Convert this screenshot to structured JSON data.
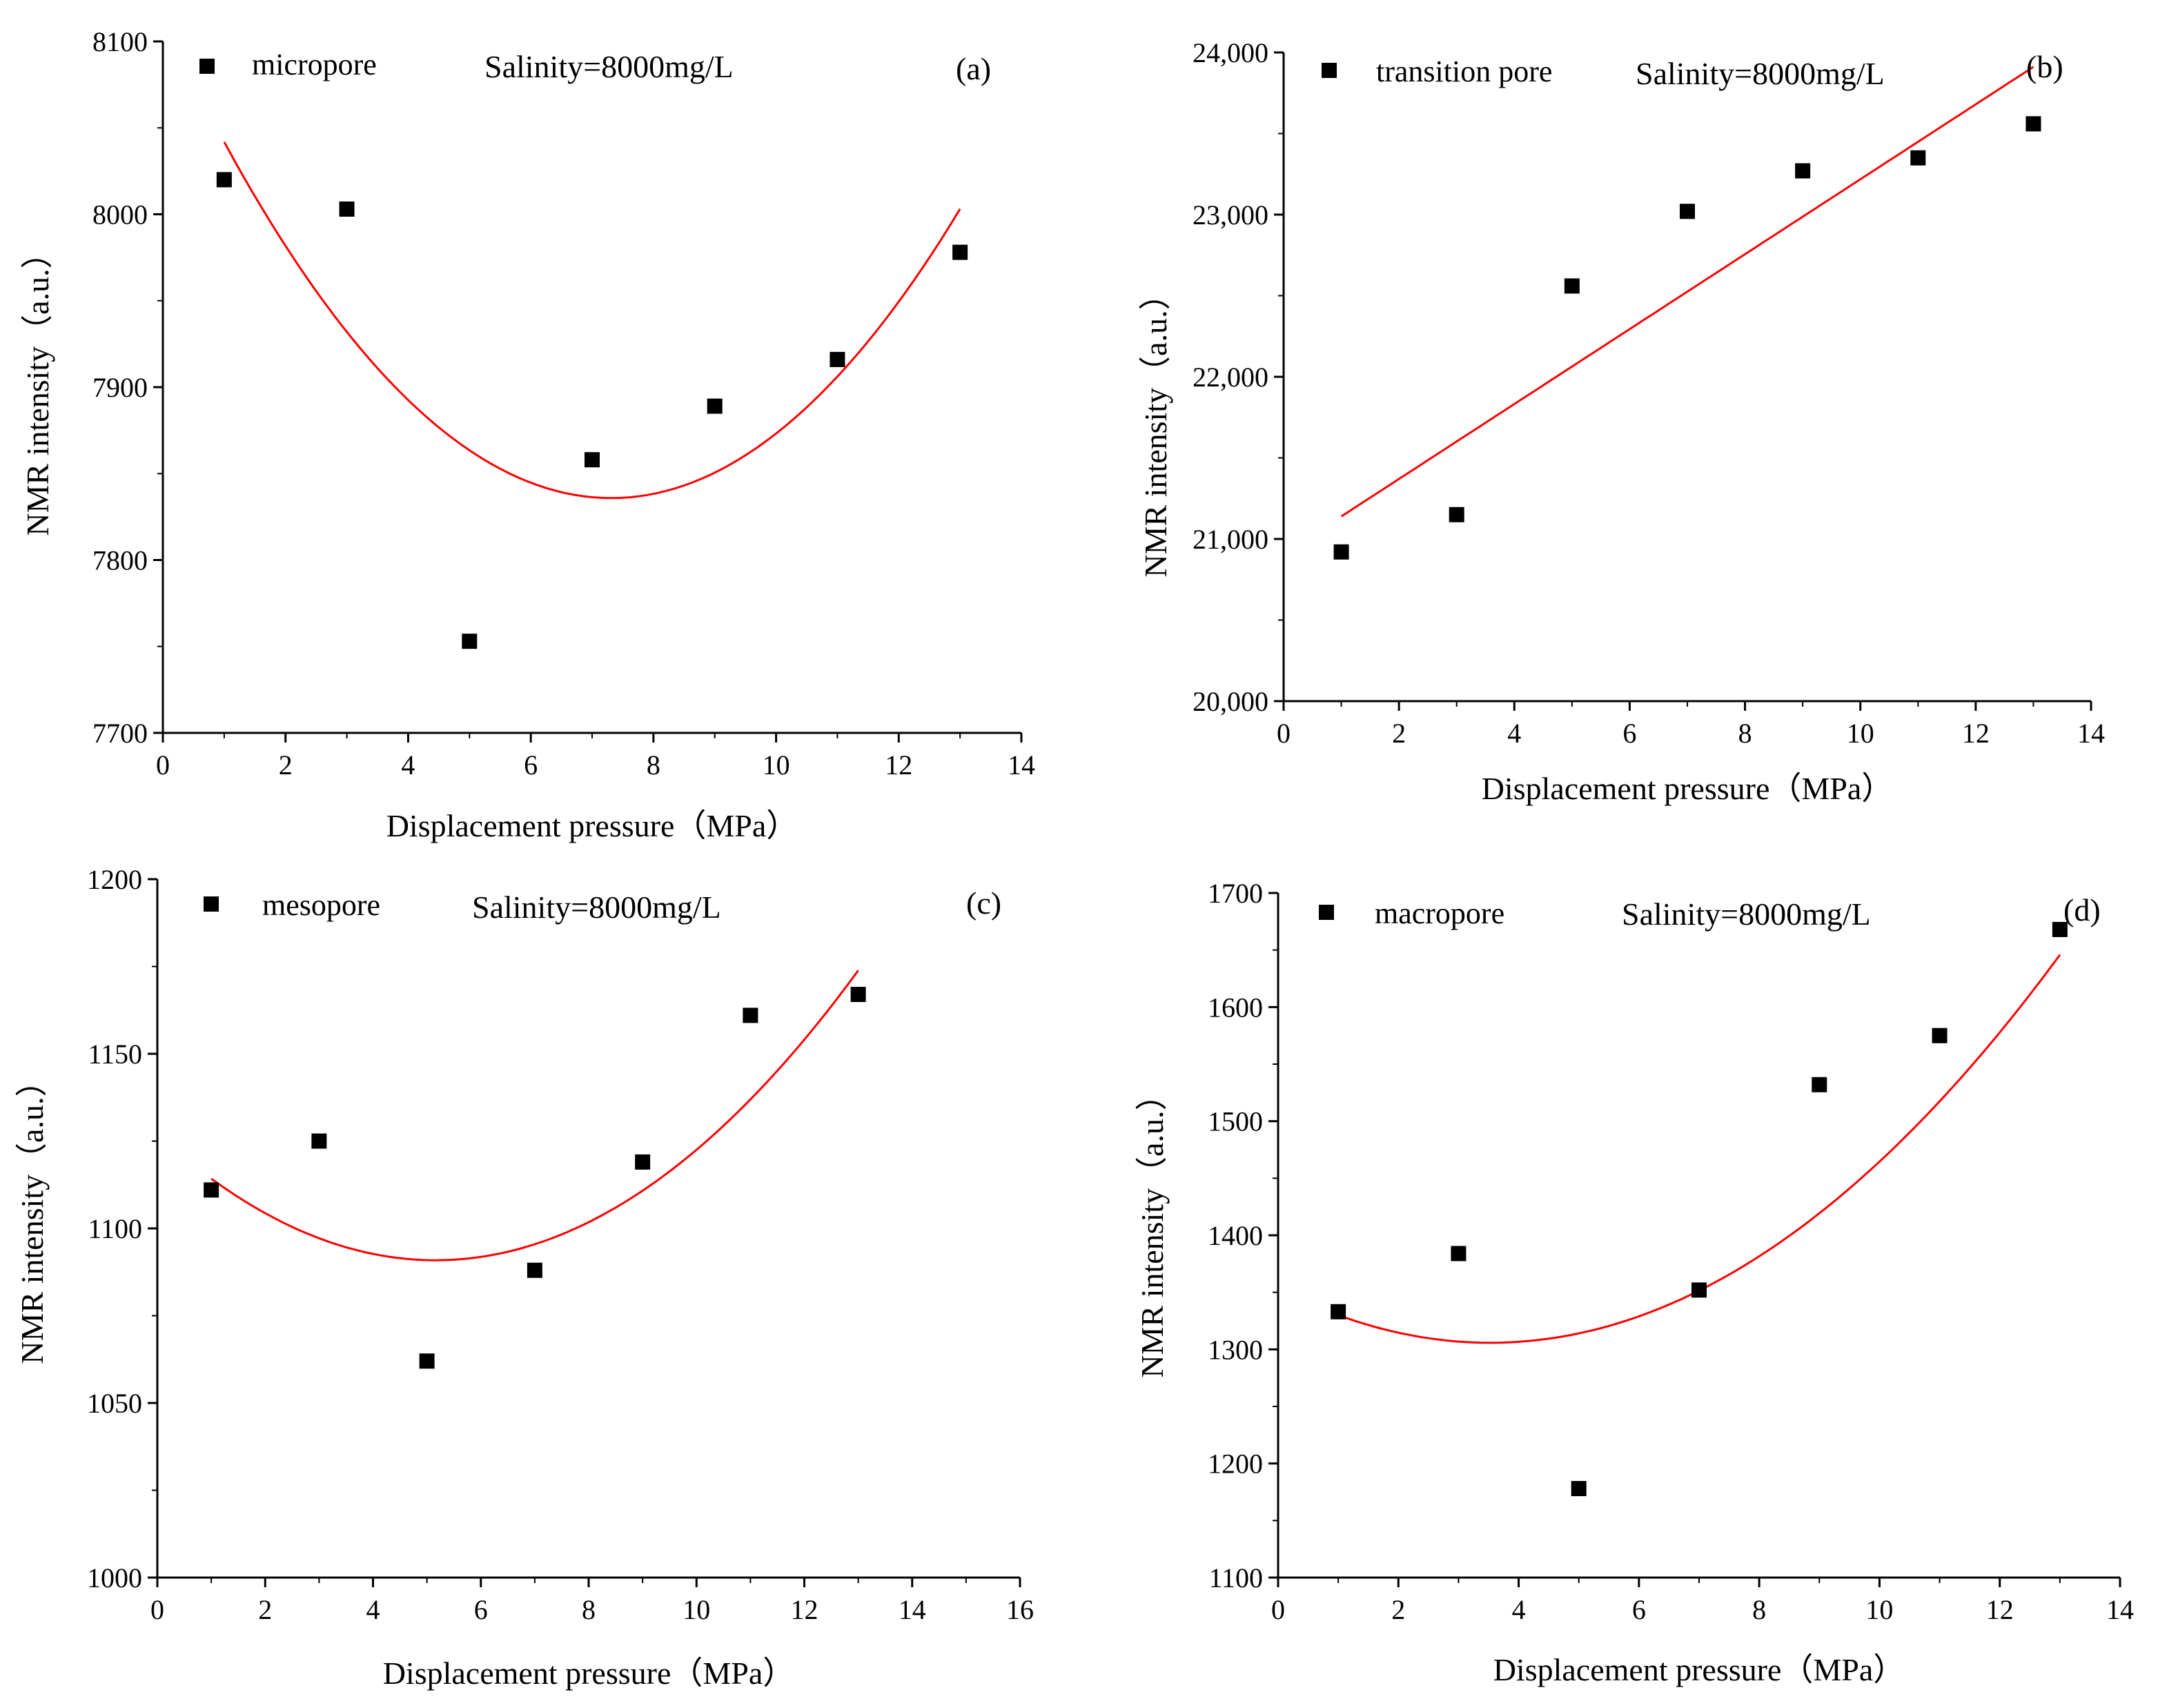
{
  "colors": {
    "marker": "#000000",
    "fit": "#ff0000",
    "axis": "#000000"
  },
  "chart_data": [
    {
      "id": "a",
      "type": "scatter",
      "panel_label": "(a)",
      "legend": "micropore",
      "annotation": "Salinity=8000mg/L",
      "xlabel": "Displacement pressure（MPa）",
      "ylabel": "NMR intensity（a.u.）",
      "xlim": [
        0,
        14
      ],
      "ylim": [
        7700,
        8100
      ],
      "xticks": [
        0,
        2,
        4,
        6,
        8,
        10,
        12,
        14
      ],
      "yticks": [
        7700,
        7800,
        7900,
        8000,
        8100
      ],
      "xtick_labels": [
        "0",
        "2",
        "4",
        "6",
        "8",
        "10",
        "12",
        "14"
      ],
      "ytick_labels": [
        "7700",
        "7800",
        "7900",
        "8000",
        "8100"
      ],
      "x": [
        1,
        3,
        5,
        7,
        9,
        11,
        13
      ],
      "y": [
        8020,
        8003,
        7753,
        7858,
        7889,
        7916,
        7978
      ],
      "fit": {
        "type": "quadratic",
        "coef": [
          8112.26,
          -75.61,
          5.17
        ],
        "x_range": [
          1,
          13
        ]
      }
    },
    {
      "id": "b",
      "type": "scatter",
      "panel_label": "(b)",
      "legend": "transition pore",
      "annotation": "Salinity=8000mg/L",
      "xlabel": "Displacement pressure（MPa）",
      "ylabel": "NMR intensity（a.u.）",
      "xlim": [
        0,
        14
      ],
      "ylim": [
        20000,
        24000
      ],
      "xticks": [
        0,
        2,
        4,
        6,
        8,
        10,
        12,
        14
      ],
      "yticks": [
        20000,
        21000,
        22000,
        23000,
        24000
      ],
      "xtick_labels": [
        "0",
        "2",
        "4",
        "6",
        "8",
        "10",
        "12",
        "14"
      ],
      "ytick_labels": [
        "20,000",
        "21,000",
        "22,000",
        "23,000",
        "24,000"
      ],
      "x": [
        1,
        3,
        5,
        7,
        9,
        11,
        13
      ],
      "y": [
        20920,
        21150,
        22560,
        23020,
        23270,
        23350,
        23560
      ],
      "fit": {
        "type": "linear",
        "coef": [
          20908,
          231
        ],
        "x_range": [
          1,
          13
        ]
      }
    },
    {
      "id": "c",
      "type": "scatter",
      "panel_label": "(c)",
      "legend": "mesopore",
      "annotation": "Salinity=8000mg/L",
      "xlabel": "Displacement pressure（MPa）",
      "ylabel": "NMR intensity（a.u.）",
      "xlim": [
        0,
        16
      ],
      "ylim": [
        1000,
        1200
      ],
      "xticks": [
        0,
        2,
        4,
        6,
        8,
        10,
        12,
        14,
        16
      ],
      "yticks": [
        1000,
        1050,
        1100,
        1150,
        1200
      ],
      "xtick_labels": [
        "0",
        "2",
        "4",
        "6",
        "8",
        "10",
        "12",
        "14",
        "16"
      ],
      "ytick_labels": [
        "1000",
        "1050",
        "1100",
        "1150",
        "1200"
      ],
      "x": [
        1,
        3,
        5,
        7,
        9,
        11,
        13
      ],
      "y": [
        1111,
        1125,
        1062,
        1088,
        1119,
        1161,
        1167
      ],
      "fit": {
        "type": "quadratic",
        "coef": [
          1126.81,
          -13.93,
          1.35
        ],
        "x_range": [
          1,
          13
        ]
      }
    },
    {
      "id": "d",
      "type": "scatter",
      "panel_label": "(d)",
      "legend": "macropore",
      "annotation": "Salinity=8000mg/L",
      "xlabel": "Displacement pressure（MPa）",
      "ylabel": "NMR intensity（a.u.）",
      "xlim": [
        0,
        14
      ],
      "ylim": [
        1100,
        1700
      ],
      "xticks": [
        0,
        2,
        4,
        6,
        8,
        10,
        12,
        14
      ],
      "yticks": [
        1100,
        1200,
        1300,
        1400,
        1500,
        1600,
        1700
      ],
      "xtick_labels": [
        "0",
        "2",
        "4",
        "6",
        "8",
        "10",
        "12",
        "14"
      ],
      "ytick_labels": [
        "1100",
        "1200",
        "1300",
        "1400",
        "1500",
        "1600",
        "1700"
      ],
      "x": [
        1,
        3,
        5,
        7,
        9,
        11,
        13
      ],
      "y": [
        1333,
        1384,
        1178,
        1352,
        1532,
        1575,
        1668
      ],
      "fit": {
        "type": "quadratic",
        "coef": [
          1352.95,
          -26.74,
          3.79
        ],
        "x_range": [
          1,
          13
        ]
      }
    }
  ]
}
